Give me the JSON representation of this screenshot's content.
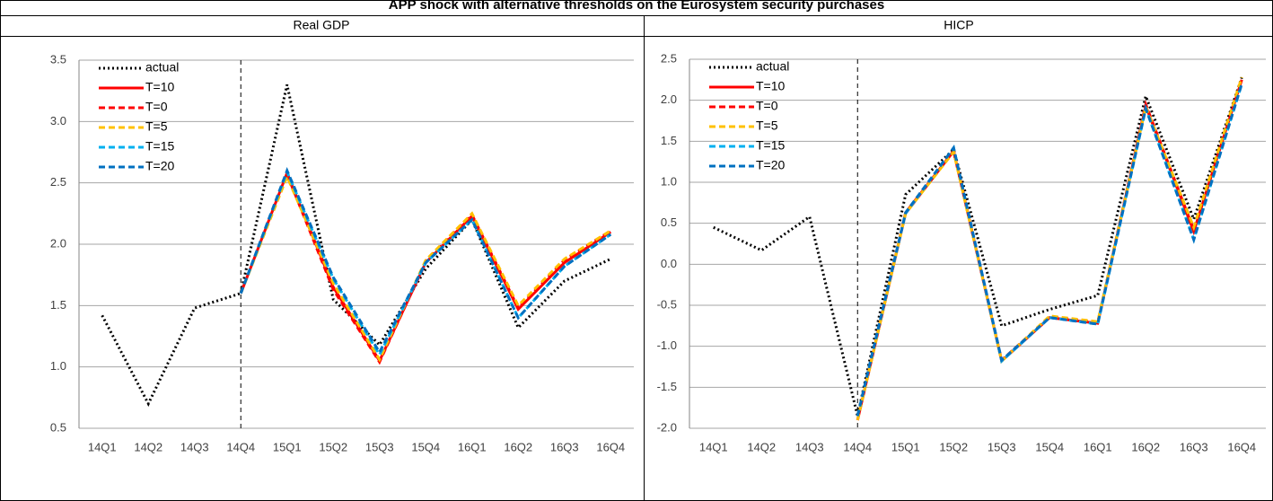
{
  "title": "APP shock with alternative thresholds on the Eurosystem security purchases",
  "chart_data": [
    {
      "type": "line",
      "title": "Real GDP",
      "categories": [
        "14Q1",
        "14Q2",
        "14Q3",
        "14Q4",
        "15Q1",
        "15Q2",
        "15Q3",
        "15Q4",
        "16Q1",
        "16Q2",
        "16Q3",
        "16Q4"
      ],
      "ylim": [
        0.5,
        3.5
      ],
      "yticks": [
        0.5,
        {
          "value": 1,
          "label": "1.0"
        },
        1.5,
        {
          "value": 2,
          "label": "2.0"
        },
        2.5,
        {
          "value": 3,
          "label": "3.0"
        },
        3.5
      ],
      "grid": true,
      "legend": "upper-left",
      "vline_at": "14Q4",
      "series": [
        {
          "name": "actual",
          "color": "#000000",
          "style": "dotted",
          "values": [
            1.42,
            0.7,
            1.48,
            1.6,
            3.3,
            1.55,
            1.18,
            1.8,
            2.2,
            1.32,
            1.7,
            1.88
          ]
        },
        {
          "name": "T=10",
          "color": "#ff0000",
          "style": "solid",
          "values": [
            null,
            null,
            null,
            1.6,
            2.58,
            1.65,
            1.05,
            1.85,
            2.23,
            1.47,
            1.85,
            2.1
          ]
        },
        {
          "name": "T=0",
          "color": "#ff0000",
          "style": "dashed",
          "values": [
            null,
            null,
            null,
            1.6,
            2.57,
            1.63,
            1.04,
            1.86,
            2.24,
            1.48,
            1.87,
            2.11
          ]
        },
        {
          "name": "T=5",
          "color": "#ffc000",
          "style": "dashed",
          "values": [
            null,
            null,
            null,
            1.6,
            2.55,
            1.68,
            1.06,
            1.87,
            2.25,
            1.5,
            1.88,
            2.11
          ]
        },
        {
          "name": "T=15",
          "color": "#00b0f0",
          "style": "dashed",
          "values": [
            null,
            null,
            null,
            1.6,
            2.59,
            1.72,
            1.1,
            1.85,
            2.2,
            1.4,
            1.82,
            2.08
          ]
        },
        {
          "name": "T=20",
          "color": "#0070c0",
          "style": "dashed",
          "values": [
            null,
            null,
            null,
            1.6,
            2.6,
            1.73,
            1.12,
            1.85,
            2.2,
            1.4,
            1.82,
            2.08
          ]
        }
      ]
    },
    {
      "type": "line",
      "title": "HICP",
      "categories": [
        "14Q1",
        "14Q2",
        "14Q3",
        "14Q4",
        "15Q1",
        "15Q2",
        "15Q3",
        "15Q4",
        "16Q1",
        "16Q2",
        "16Q3",
        "16Q4"
      ],
      "ylim": [
        -2,
        2.5
      ],
      "yticks": [
        {
          "value": -2,
          "label": "-2.0"
        },
        -1.5,
        {
          "value": -1,
          "label": "-1.0"
        },
        -0.5,
        {
          "value": 0,
          "label": "0.0"
        },
        0.5,
        {
          "value": 1,
          "label": "1.0"
        },
        1.5,
        {
          "value": 2,
          "label": "2.0"
        },
        2.5
      ],
      "grid": true,
      "legend": "upper-left",
      "vline_at": "14Q4",
      "series": [
        {
          "name": "actual",
          "color": "#000000",
          "style": "dotted",
          "values": [
            0.45,
            0.17,
            0.58,
            -1.85,
            0.85,
            1.4,
            -0.75,
            -0.55,
            -0.38,
            2.05,
            0.55,
            2.28
          ]
        },
        {
          "name": "T=10",
          "color": "#ff0000",
          "style": "solid",
          "values": [
            null,
            null,
            null,
            -1.9,
            0.62,
            1.38,
            -1.18,
            -0.65,
            -0.72,
            1.93,
            0.4,
            2.25
          ]
        },
        {
          "name": "T=0",
          "color": "#ff0000",
          "style": "dashed",
          "values": [
            null,
            null,
            null,
            -1.9,
            0.63,
            1.38,
            -1.17,
            -0.64,
            -0.71,
            1.95,
            0.42,
            2.27
          ]
        },
        {
          "name": "T=5",
          "color": "#ffc000",
          "style": "dashed",
          "values": [
            null,
            null,
            null,
            -1.9,
            0.62,
            1.37,
            -1.18,
            -0.63,
            -0.7,
            1.92,
            0.45,
            2.28
          ]
        },
        {
          "name": "T=15",
          "color": "#00b0f0",
          "style": "dashed",
          "values": [
            null,
            null,
            null,
            -1.85,
            0.62,
            1.42,
            -1.18,
            -0.65,
            -0.73,
            1.9,
            0.3,
            2.2
          ]
        },
        {
          "name": "T=20",
          "color": "#0070c0",
          "style": "dashed",
          "values": [
            null,
            null,
            null,
            -1.85,
            0.63,
            1.42,
            -1.17,
            -0.65,
            -0.73,
            1.9,
            0.3,
            2.2
          ]
        }
      ]
    }
  ]
}
